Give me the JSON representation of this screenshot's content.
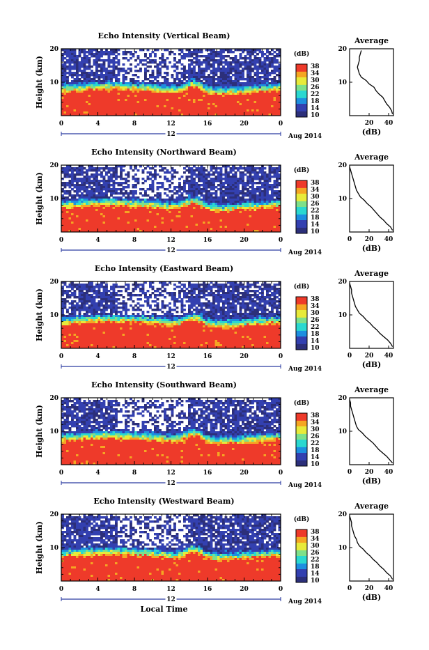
{
  "xlabel": "Local Time",
  "date_suffix": "Aug 2014",
  "colorbar": {
    "unit": "(dB)",
    "ticks": [
      "38",
      "34",
      "30",
      "26",
      "22",
      "18",
      "14",
      "10"
    ]
  },
  "chart_data": [
    {
      "type": "heatmap",
      "title": "Echo Intensity (Vertical Beam)",
      "ylabel": "Height (km)",
      "xticks": [
        "0",
        "4",
        "8",
        "12",
        "16",
        "20",
        "0"
      ],
      "yticks": [
        "20",
        "10"
      ],
      "day_label": "12",
      "xlim": [
        0,
        24
      ],
      "ylim": [
        0,
        20
      ],
      "clim": [
        10,
        38
      ],
      "color_scale": [
        "#2c2f7a",
        "#3340b0",
        "#1d8fe0",
        "#2ad8d0",
        "#7ee08a",
        "#e8ea3a",
        "#f5a623",
        "#ee3a2a"
      ],
      "profile": {
        "title": "Average",
        "xlabel": "(dB)",
        "xticks": [
          "20",
          "40"
        ],
        "yticks": [
          "20",
          "10"
        ],
        "xlim": [
          0,
          45
        ],
        "height": [
          0.5,
          1.5,
          2.5,
          3.5,
          4.5,
          5.5,
          6.5,
          7.5,
          8.5,
          9.5,
          10.5,
          11.5,
          12.5,
          13.5,
          14.5,
          15.5,
          16.5,
          17.5,
          18.5,
          19.5
        ],
        "values": [
          44,
          43,
          41,
          38,
          36,
          34,
          30,
          27,
          25,
          20,
          17,
          12,
          10,
          9,
          8,
          9,
          10,
          10,
          11,
          12
        ]
      }
    },
    {
      "type": "heatmap",
      "title": "Echo Intensity (Northward Beam)",
      "ylabel": "Height (km)",
      "xticks": [
        "0",
        "4",
        "8",
        "12",
        "16",
        "20",
        "0"
      ],
      "yticks": [
        "20",
        "10"
      ],
      "day_label": "12",
      "xlim": [
        0,
        24
      ],
      "ylim": [
        0,
        20
      ],
      "clim": [
        10,
        38
      ],
      "color_scale": [
        "#2c2f7a",
        "#3340b0",
        "#1d8fe0",
        "#2ad8d0",
        "#7ee08a",
        "#e8ea3a",
        "#f5a623",
        "#ee3a2a"
      ],
      "profile": {
        "title": "Average",
        "xlabel": "(dB)",
        "xticks": [
          "0",
          "20",
          "40"
        ],
        "yticks": [
          "20",
          "10"
        ],
        "xlim": [
          0,
          45
        ],
        "height": [
          0.5,
          1.5,
          2.5,
          3.5,
          4.5,
          5.5,
          6.5,
          7.5,
          8.5,
          9.5,
          10.5,
          11.5,
          12.5,
          13.5,
          14.5,
          15.5,
          16.5,
          17.5,
          18.5,
          19.5
        ],
        "values": [
          44,
          42,
          38,
          35,
          31,
          28,
          25,
          22,
          18,
          15,
          11,
          9,
          7,
          6,
          5,
          4,
          3,
          2,
          1,
          0
        ]
      }
    },
    {
      "type": "heatmap",
      "title": "Echo Intensity (Eastward Beam)",
      "ylabel": "Height (km)",
      "xticks": [
        "0",
        "4",
        "8",
        "12",
        "16",
        "20",
        "0"
      ],
      "yticks": [
        "20",
        "10"
      ],
      "day_label": "12",
      "xlim": [
        0,
        24
      ],
      "ylim": [
        0,
        20
      ],
      "clim": [
        10,
        38
      ],
      "color_scale": [
        "#2c2f7a",
        "#3340b0",
        "#1d8fe0",
        "#2ad8d0",
        "#7ee08a",
        "#e8ea3a",
        "#f5a623",
        "#ee3a2a"
      ],
      "profile": {
        "title": "Average",
        "xlabel": "(dB)",
        "xticks": [
          "0",
          "20",
          "40"
        ],
        "yticks": [
          "20",
          "10"
        ],
        "xlim": [
          0,
          45
        ],
        "height": [
          0.5,
          1.5,
          2.5,
          3.5,
          4.5,
          5.5,
          6.5,
          7.5,
          8.5,
          9.5,
          10.5,
          11.5,
          12.5,
          13.5,
          14.5,
          15.5,
          16.5,
          17.5,
          18.5,
          19.5
        ],
        "values": [
          44,
          42,
          39,
          35,
          31,
          28,
          24,
          21,
          17,
          14,
          10,
          8,
          6,
          5,
          4,
          3,
          2,
          2,
          1,
          0
        ]
      }
    },
    {
      "type": "heatmap",
      "title": "Echo Intensity (Southward Beam)",
      "ylabel": "Height (km)",
      "xticks": [
        "0",
        "4",
        "8",
        "12",
        "16",
        "20",
        "0"
      ],
      "yticks": [
        "20",
        "10"
      ],
      "day_label": "12",
      "xlim": [
        0,
        24
      ],
      "ylim": [
        0,
        20
      ],
      "clim": [
        10,
        38
      ],
      "color_scale": [
        "#2c2f7a",
        "#3340b0",
        "#1d8fe0",
        "#2ad8d0",
        "#7ee08a",
        "#e8ea3a",
        "#f5a623",
        "#ee3a2a"
      ],
      "profile": {
        "title": "Average",
        "xlabel": "(dB)",
        "xticks": [
          "0",
          "20",
          "40"
        ],
        "yticks": [
          "20",
          "10"
        ],
        "xlim": [
          0,
          45
        ],
        "height": [
          0.5,
          1.5,
          2.5,
          3.5,
          4.5,
          5.5,
          6.5,
          7.5,
          8.5,
          9.5,
          10.5,
          11.5,
          12.5,
          13.5,
          14.5,
          15.5,
          16.5,
          17.5,
          18.5,
          19.5
        ],
        "values": [
          44,
          41,
          38,
          34,
          30,
          27,
          24,
          20,
          16,
          13,
          9,
          7,
          6,
          5,
          4,
          3,
          2,
          1,
          1,
          0
        ]
      }
    },
    {
      "type": "heatmap",
      "title": "Echo Intensity (Westward Beam)",
      "ylabel": "Height (km)",
      "xticks": [
        "0",
        "4",
        "8",
        "12",
        "16",
        "20",
        "0"
      ],
      "yticks": [
        "20",
        "10"
      ],
      "day_label": "12",
      "xlim": [
        0,
        24
      ],
      "ylim": [
        0,
        20
      ],
      "clim": [
        10,
        38
      ],
      "color_scale": [
        "#2c2f7a",
        "#3340b0",
        "#1d8fe0",
        "#2ad8d0",
        "#7ee08a",
        "#e8ea3a",
        "#f5a623",
        "#ee3a2a"
      ],
      "profile": {
        "title": "Average",
        "xlabel": "(dB)",
        "xticks": [
          "0",
          "20",
          "40"
        ],
        "yticks": [
          "20",
          "10"
        ],
        "xlim": [
          0,
          45
        ],
        "height": [
          0.5,
          1.5,
          2.5,
          3.5,
          4.5,
          5.5,
          6.5,
          7.5,
          8.5,
          9.5,
          10.5,
          11.5,
          12.5,
          13.5,
          14.5,
          15.5,
          16.5,
          17.5,
          18.5,
          19.5
        ],
        "values": [
          44,
          42,
          38,
          35,
          31,
          28,
          24,
          21,
          17,
          14,
          10,
          8,
          7,
          5,
          4,
          3,
          2,
          2,
          1,
          0
        ]
      }
    }
  ]
}
